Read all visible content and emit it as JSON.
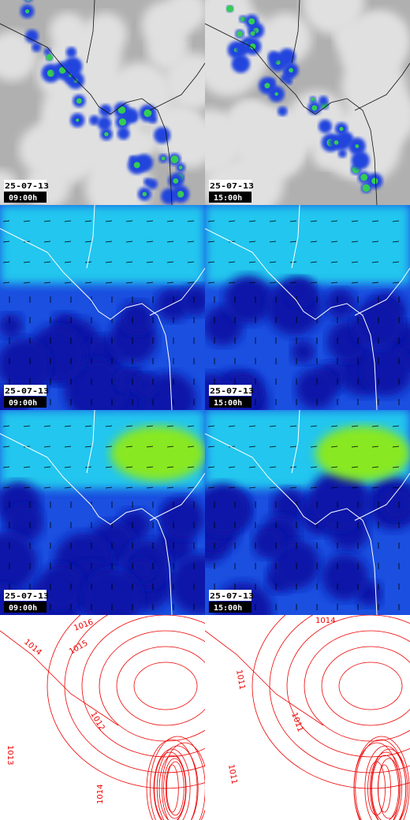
{
  "labeled_panels": [
    {
      "date": "25-07-13",
      "time": "09:00h"
    },
    {
      "date": "25-07-13",
      "time": "15:00h"
    },
    {
      "date": "25-07-13",
      "time": "09:00h"
    },
    {
      "date": "25-07-13",
      "time": "15:00h"
    },
    {
      "date": "25-07-13",
      "time": "09:00h"
    },
    {
      "date": "25-07-13",
      "time": "15:00h"
    }
  ],
  "pressure_panels": [
    {
      "contour_labels": [
        "1014",
        "1016",
        "1015",
        "1012",
        "1013",
        "1014"
      ]
    },
    {
      "contour_labels": [
        "1014",
        "1011",
        "1011",
        "1011"
      ]
    }
  ]
}
